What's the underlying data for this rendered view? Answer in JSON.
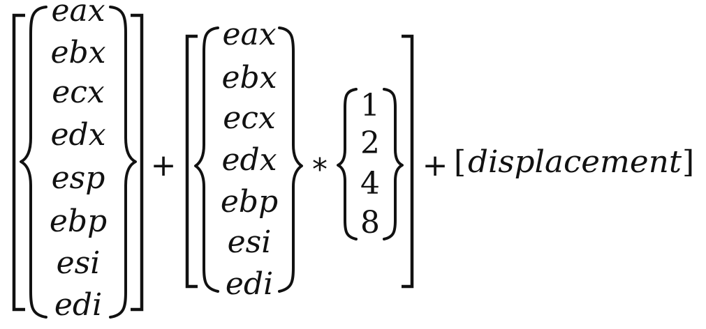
{
  "formula": {
    "base_registers": [
      "eax",
      "ebx",
      "ecx",
      "edx",
      "esp",
      "ebp",
      "esi",
      "edi"
    ],
    "index_registers": [
      "eax",
      "ebx",
      "ecx",
      "edx",
      "ebp",
      "esi",
      "edi"
    ],
    "scale_factors": [
      "1",
      "2",
      "4",
      "8"
    ],
    "plus_1": "+",
    "multiply": "*",
    "plus_2": "+",
    "left_square": "[",
    "displacement": "displacement",
    "right_square": "]"
  }
}
